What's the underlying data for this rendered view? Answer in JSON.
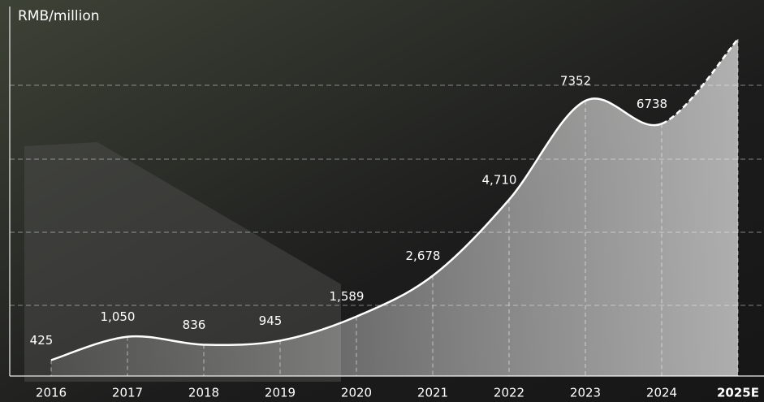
{
  "chart_data": {
    "type": "area-line",
    "y_label": "RMB/million",
    "categories": [
      "2016",
      "2017",
      "2018",
      "2019",
      "2020",
      "2021",
      "2022",
      "2023",
      "2024",
      "2025E"
    ],
    "values": [
      425,
      1050,
      836,
      945,
      1589,
      2678,
      4710,
      7352,
      6738,
      9000
    ],
    "value_labels": [
      "425",
      "1,050",
      "836",
      "945",
      "1,589",
      "2,678",
      "4,710",
      "7352",
      "6738",
      null
    ],
    "estimated_from": "2025E",
    "ylim": [
      0,
      9500
    ],
    "color": "#ffffff"
  }
}
